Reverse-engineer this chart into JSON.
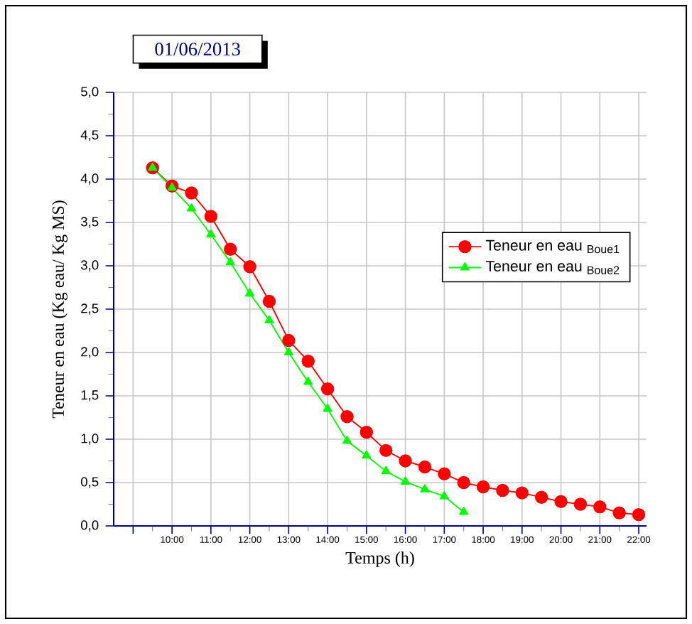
{
  "chart_data": {
    "type": "line",
    "title": "01/06/2013",
    "xlabel": "Temps (h)",
    "ylabel": "Teneur en eau (Kg eau/ Kg MS)",
    "xlim": [
      8.5,
      22.2
    ],
    "ylim": [
      0,
      5
    ],
    "xticks": [
      {
        "value": 9,
        "label": null
      },
      {
        "value": 10,
        "label": "10:00"
      },
      {
        "value": 11,
        "label": "11:00"
      },
      {
        "value": 12,
        "label": "12:00"
      },
      {
        "value": 13,
        "label": "13:00"
      },
      {
        "value": 14,
        "label": "14:00"
      },
      {
        "value": 15,
        "label": "15:00"
      },
      {
        "value": 16,
        "label": "16:00"
      },
      {
        "value": 17,
        "label": "17:00"
      },
      {
        "value": 18,
        "label": "18:00"
      },
      {
        "value": 19,
        "label": "19:00"
      },
      {
        "value": 20,
        "label": "20:00"
      },
      {
        "value": 21,
        "label": "21:00"
      },
      {
        "value": 22,
        "label": "22:00"
      }
    ],
    "yticks": [
      {
        "value": 0,
        "label": "0,0"
      },
      {
        "value": 0.5,
        "label": "0,5"
      },
      {
        "value": 1,
        "label": "1,0"
      },
      {
        "value": 1.5,
        "label": "1,5"
      },
      {
        "value": 2,
        "label": "2,0"
      },
      {
        "value": 2.5,
        "label": "2,5"
      },
      {
        "value": 3,
        "label": "3,0"
      },
      {
        "value": 3.5,
        "label": "3,5"
      },
      {
        "value": 4,
        "label": "4,0"
      },
      {
        "value": 4.5,
        "label": "4,5"
      },
      {
        "value": 5,
        "label": "5,0"
      }
    ],
    "grid": true,
    "legend": "right",
    "line_style": "solid",
    "series": [
      {
        "name": "Teneur en eau $_{Boue1}$",
        "color": "#ff0000",
        "marker": "circle",
        "x": [
          9.5,
          10,
          10.5,
          11,
          11.5,
          12,
          12.5,
          13,
          13.5,
          14,
          14.5,
          15,
          15.5,
          16,
          16.5,
          17,
          17.5,
          18,
          18.5,
          19,
          19.5,
          20,
          20.5,
          21,
          21.5,
          22
        ],
        "values": [
          4.13,
          3.92,
          3.84,
          3.57,
          3.19,
          2.99,
          2.59,
          2.14,
          1.9,
          1.58,
          1.26,
          1.08,
          0.87,
          0.75,
          0.68,
          0.6,
          0.5,
          0.45,
          0.41,
          0.38,
          0.33,
          0.28,
          0.25,
          0.22,
          0.15,
          0.13
        ]
      },
      {
        "name": "Teneur en eau $_{Boue2}$",
        "color": "#00ff00",
        "marker": "triangle",
        "x": [
          9.5,
          10,
          10.5,
          11,
          11.5,
          12,
          12.5,
          13,
          13.5,
          14,
          14.5,
          15,
          15.5,
          16,
          16.5,
          17,
          17.5
        ],
        "values": [
          4.13,
          3.9,
          3.66,
          3.36,
          3.04,
          2.68,
          2.37,
          2.0,
          1.66,
          1.35,
          0.98,
          0.81,
          0.63,
          0.51,
          0.42,
          0.34,
          0.16
        ]
      }
    ]
  }
}
